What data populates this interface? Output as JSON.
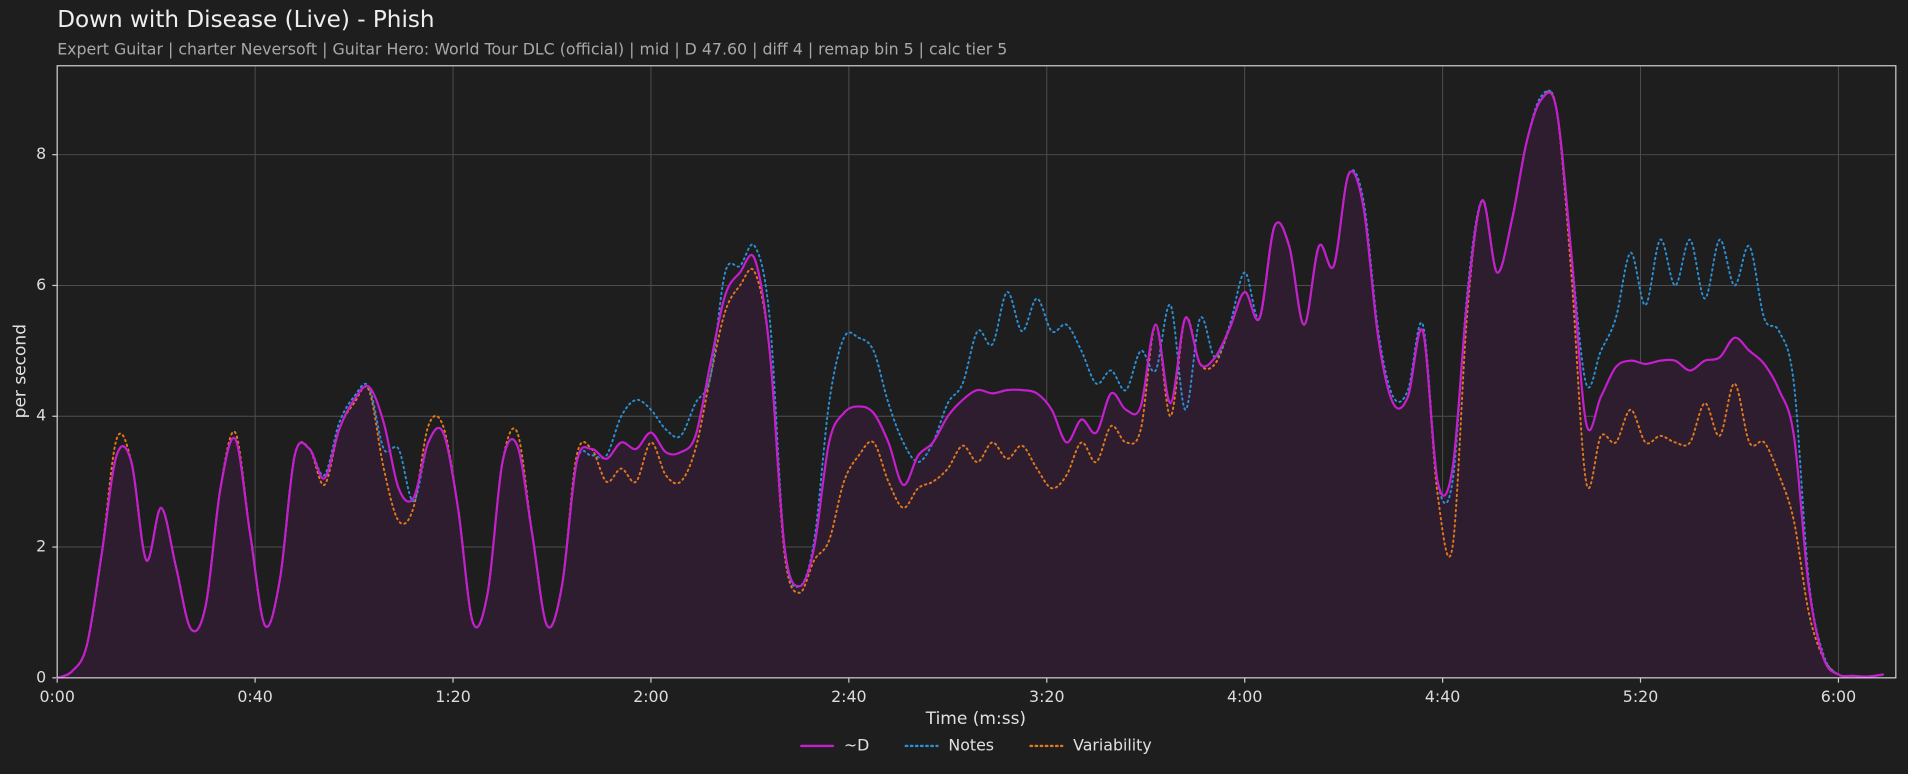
{
  "chart_data": {
    "type": "line",
    "title": "Down with Disease (Live) - Phish",
    "subtitle": "Expert Guitar  |  charter Neversoft  |  Guitar Hero: World Tour DLC (official)  |  mid  |  D 47.60  |  diff 4  |  remap bin 5  |  calc tier 5",
    "xlabel": "Time (m:ss)",
    "ylabel": "per second",
    "x": [
      0,
      3,
      6,
      9,
      12,
      15,
      18,
      21,
      24,
      27,
      30,
      33,
      36,
      39,
      42,
      45,
      48,
      51,
      54,
      57,
      60,
      63,
      66,
      69,
      72,
      75,
      78,
      81,
      84,
      87,
      90,
      93,
      96,
      99,
      102,
      105,
      108,
      111,
      114,
      117,
      120,
      123,
      126,
      129,
      132,
      135,
      138,
      141,
      144,
      147,
      150,
      153,
      156,
      159,
      162,
      165,
      168,
      171,
      174,
      177,
      180,
      183,
      186,
      189,
      192,
      195,
      198,
      201,
      204,
      207,
      210,
      213,
      216,
      219,
      222,
      225,
      228,
      231,
      234,
      237,
      240,
      243,
      246,
      249,
      252,
      255,
      258,
      261,
      264,
      267,
      270,
      273,
      276,
      279,
      282,
      285,
      288,
      291,
      294,
      297,
      300,
      303,
      306,
      309,
      312,
      315,
      318,
      321,
      324,
      327,
      330,
      333,
      336,
      339,
      342,
      345,
      348,
      351,
      354,
      357,
      360,
      363,
      366,
      369
    ],
    "series": [
      {
        "name": "~D",
        "color": "#c41fcc",
        "fill_color": "#2e1c2f",
        "dash": "solid",
        "values": [
          0,
          0.1,
          0.5,
          1.9,
          3.4,
          3.3,
          1.8,
          2.6,
          1.7,
          0.75,
          1.1,
          2.9,
          3.65,
          2.2,
          0.8,
          1.5,
          3.4,
          3.5,
          3.05,
          3.8,
          4.25,
          4.45,
          3.9,
          2.9,
          2.75,
          3.6,
          3.75,
          2.6,
          0.85,
          1.3,
          3.3,
          3.55,
          2.2,
          0.8,
          1.4,
          3.3,
          3.5,
          3.35,
          3.6,
          3.5,
          3.75,
          3.45,
          3.45,
          3.7,
          4.8,
          5.85,
          6.2,
          6.4,
          5.0,
          2.0,
          1.4,
          2.0,
          3.6,
          4.05,
          4.15,
          4.05,
          3.6,
          2.95,
          3.4,
          3.6,
          4.0,
          4.25,
          4.4,
          4.35,
          4.4,
          4.4,
          4.35,
          4.1,
          3.6,
          3.95,
          3.75,
          4.35,
          4.1,
          4.15,
          5.4,
          4.2,
          5.5,
          4.8,
          4.9,
          5.35,
          5.9,
          5.5,
          6.9,
          6.6,
          5.4,
          6.6,
          6.3,
          7.7,
          7.2,
          5.2,
          4.2,
          4.3,
          5.3,
          3.0,
          3.2,
          5.8,
          7.3,
          6.2,
          7.0,
          8.2,
          8.85,
          8.7,
          6.5,
          3.9,
          4.3,
          4.75,
          4.85,
          4.8,
          4.85,
          4.85,
          4.7,
          4.85,
          4.9,
          5.2,
          5.0,
          4.8,
          4.4,
          3.7,
          1.4,
          0.3,
          0.05,
          0.03,
          0.02,
          0.05
        ]
      },
      {
        "name": "Notes",
        "color": "#2a8fd4",
        "dash": "dotted",
        "values": [
          0,
          0.1,
          0.5,
          1.9,
          3.4,
          3.3,
          1.8,
          2.6,
          1.7,
          0.75,
          1.1,
          2.9,
          3.65,
          2.2,
          0.8,
          1.5,
          3.4,
          3.5,
          3.1,
          3.9,
          4.3,
          4.45,
          3.5,
          3.5,
          2.7,
          3.6,
          3.75,
          2.6,
          0.85,
          1.3,
          3.3,
          3.55,
          2.2,
          0.8,
          1.4,
          3.3,
          3.4,
          3.4,
          4.0,
          4.25,
          4.1,
          3.8,
          3.7,
          4.2,
          4.6,
          6.2,
          6.3,
          6.6,
          5.5,
          2.0,
          1.4,
          2.1,
          4.2,
          5.2,
          5.2,
          5.0,
          4.2,
          3.6,
          3.3,
          3.6,
          4.2,
          4.5,
          5.3,
          5.1,
          5.9,
          5.3,
          5.8,
          5.3,
          5.4,
          5.0,
          4.5,
          4.7,
          4.4,
          5.0,
          4.7,
          5.7,
          4.1,
          5.5,
          4.9,
          5.4,
          6.2,
          5.5,
          6.9,
          6.6,
          5.4,
          6.6,
          6.3,
          7.7,
          7.3,
          5.3,
          4.3,
          4.4,
          5.4,
          3.0,
          3.0,
          5.9,
          7.3,
          6.2,
          7.0,
          8.2,
          8.9,
          8.7,
          6.5,
          4.5,
          5.0,
          5.5,
          6.5,
          5.7,
          6.7,
          6.0,
          6.7,
          5.8,
          6.7,
          6.0,
          6.6,
          5.5,
          5.3,
          4.5,
          1.5,
          0.35,
          0.05,
          0.03,
          0.02,
          0.05
        ]
      },
      {
        "name": "Variability",
        "color": "#e0791c",
        "dash": "dotted",
        "values": [
          0,
          0.1,
          0.5,
          1.9,
          3.65,
          3.3,
          1.8,
          2.6,
          1.7,
          0.75,
          1.1,
          2.9,
          3.75,
          2.2,
          0.8,
          1.5,
          3.4,
          3.5,
          2.95,
          3.8,
          4.2,
          4.4,
          3.2,
          2.4,
          2.6,
          3.85,
          3.85,
          2.6,
          0.85,
          1.3,
          3.3,
          3.75,
          2.2,
          0.8,
          1.4,
          3.4,
          3.5,
          3.0,
          3.2,
          3.0,
          3.6,
          3.1,
          3.0,
          3.5,
          4.6,
          5.6,
          6.0,
          6.2,
          5.0,
          1.9,
          1.3,
          1.8,
          2.1,
          3.0,
          3.4,
          3.6,
          3.0,
          2.6,
          2.9,
          3.0,
          3.2,
          3.55,
          3.3,
          3.6,
          3.35,
          3.55,
          3.2,
          2.9,
          3.1,
          3.6,
          3.3,
          3.85,
          3.6,
          3.8,
          5.4,
          4.0,
          5.5,
          4.8,
          4.8,
          5.35,
          5.9,
          5.5,
          6.9,
          6.6,
          5.4,
          6.6,
          6.3,
          7.7,
          7.2,
          5.2,
          4.2,
          4.3,
          5.3,
          2.8,
          2.0,
          5.6,
          7.3,
          6.2,
          7.0,
          8.2,
          8.85,
          8.7,
          6.2,
          3.0,
          3.7,
          3.6,
          4.1,
          3.6,
          3.7,
          3.6,
          3.6,
          4.2,
          3.7,
          4.5,
          3.6,
          3.6,
          3.1,
          2.4,
          1.0,
          0.3,
          0.05,
          0.03,
          0.02,
          0.05
        ]
      }
    ],
    "xlim": [
      0,
      371.6
    ],
    "ylim": [
      0,
      9.36
    ],
    "xticks": [
      {
        "value": 0,
        "label": "0:00"
      },
      {
        "value": 40,
        "label": "0:40"
      },
      {
        "value": 80,
        "label": "1:20"
      },
      {
        "value": 120,
        "label": "2:00"
      },
      {
        "value": 160,
        "label": "2:40"
      },
      {
        "value": 200,
        "label": "3:20"
      },
      {
        "value": 240,
        "label": "4:00"
      },
      {
        "value": 280,
        "label": "4:40"
      },
      {
        "value": 320,
        "label": "5:20"
      },
      {
        "value": 360,
        "label": "6:00"
      }
    ],
    "yticks": [
      0,
      2,
      4,
      6,
      8
    ],
    "grid": true,
    "legend": "bottom"
  }
}
